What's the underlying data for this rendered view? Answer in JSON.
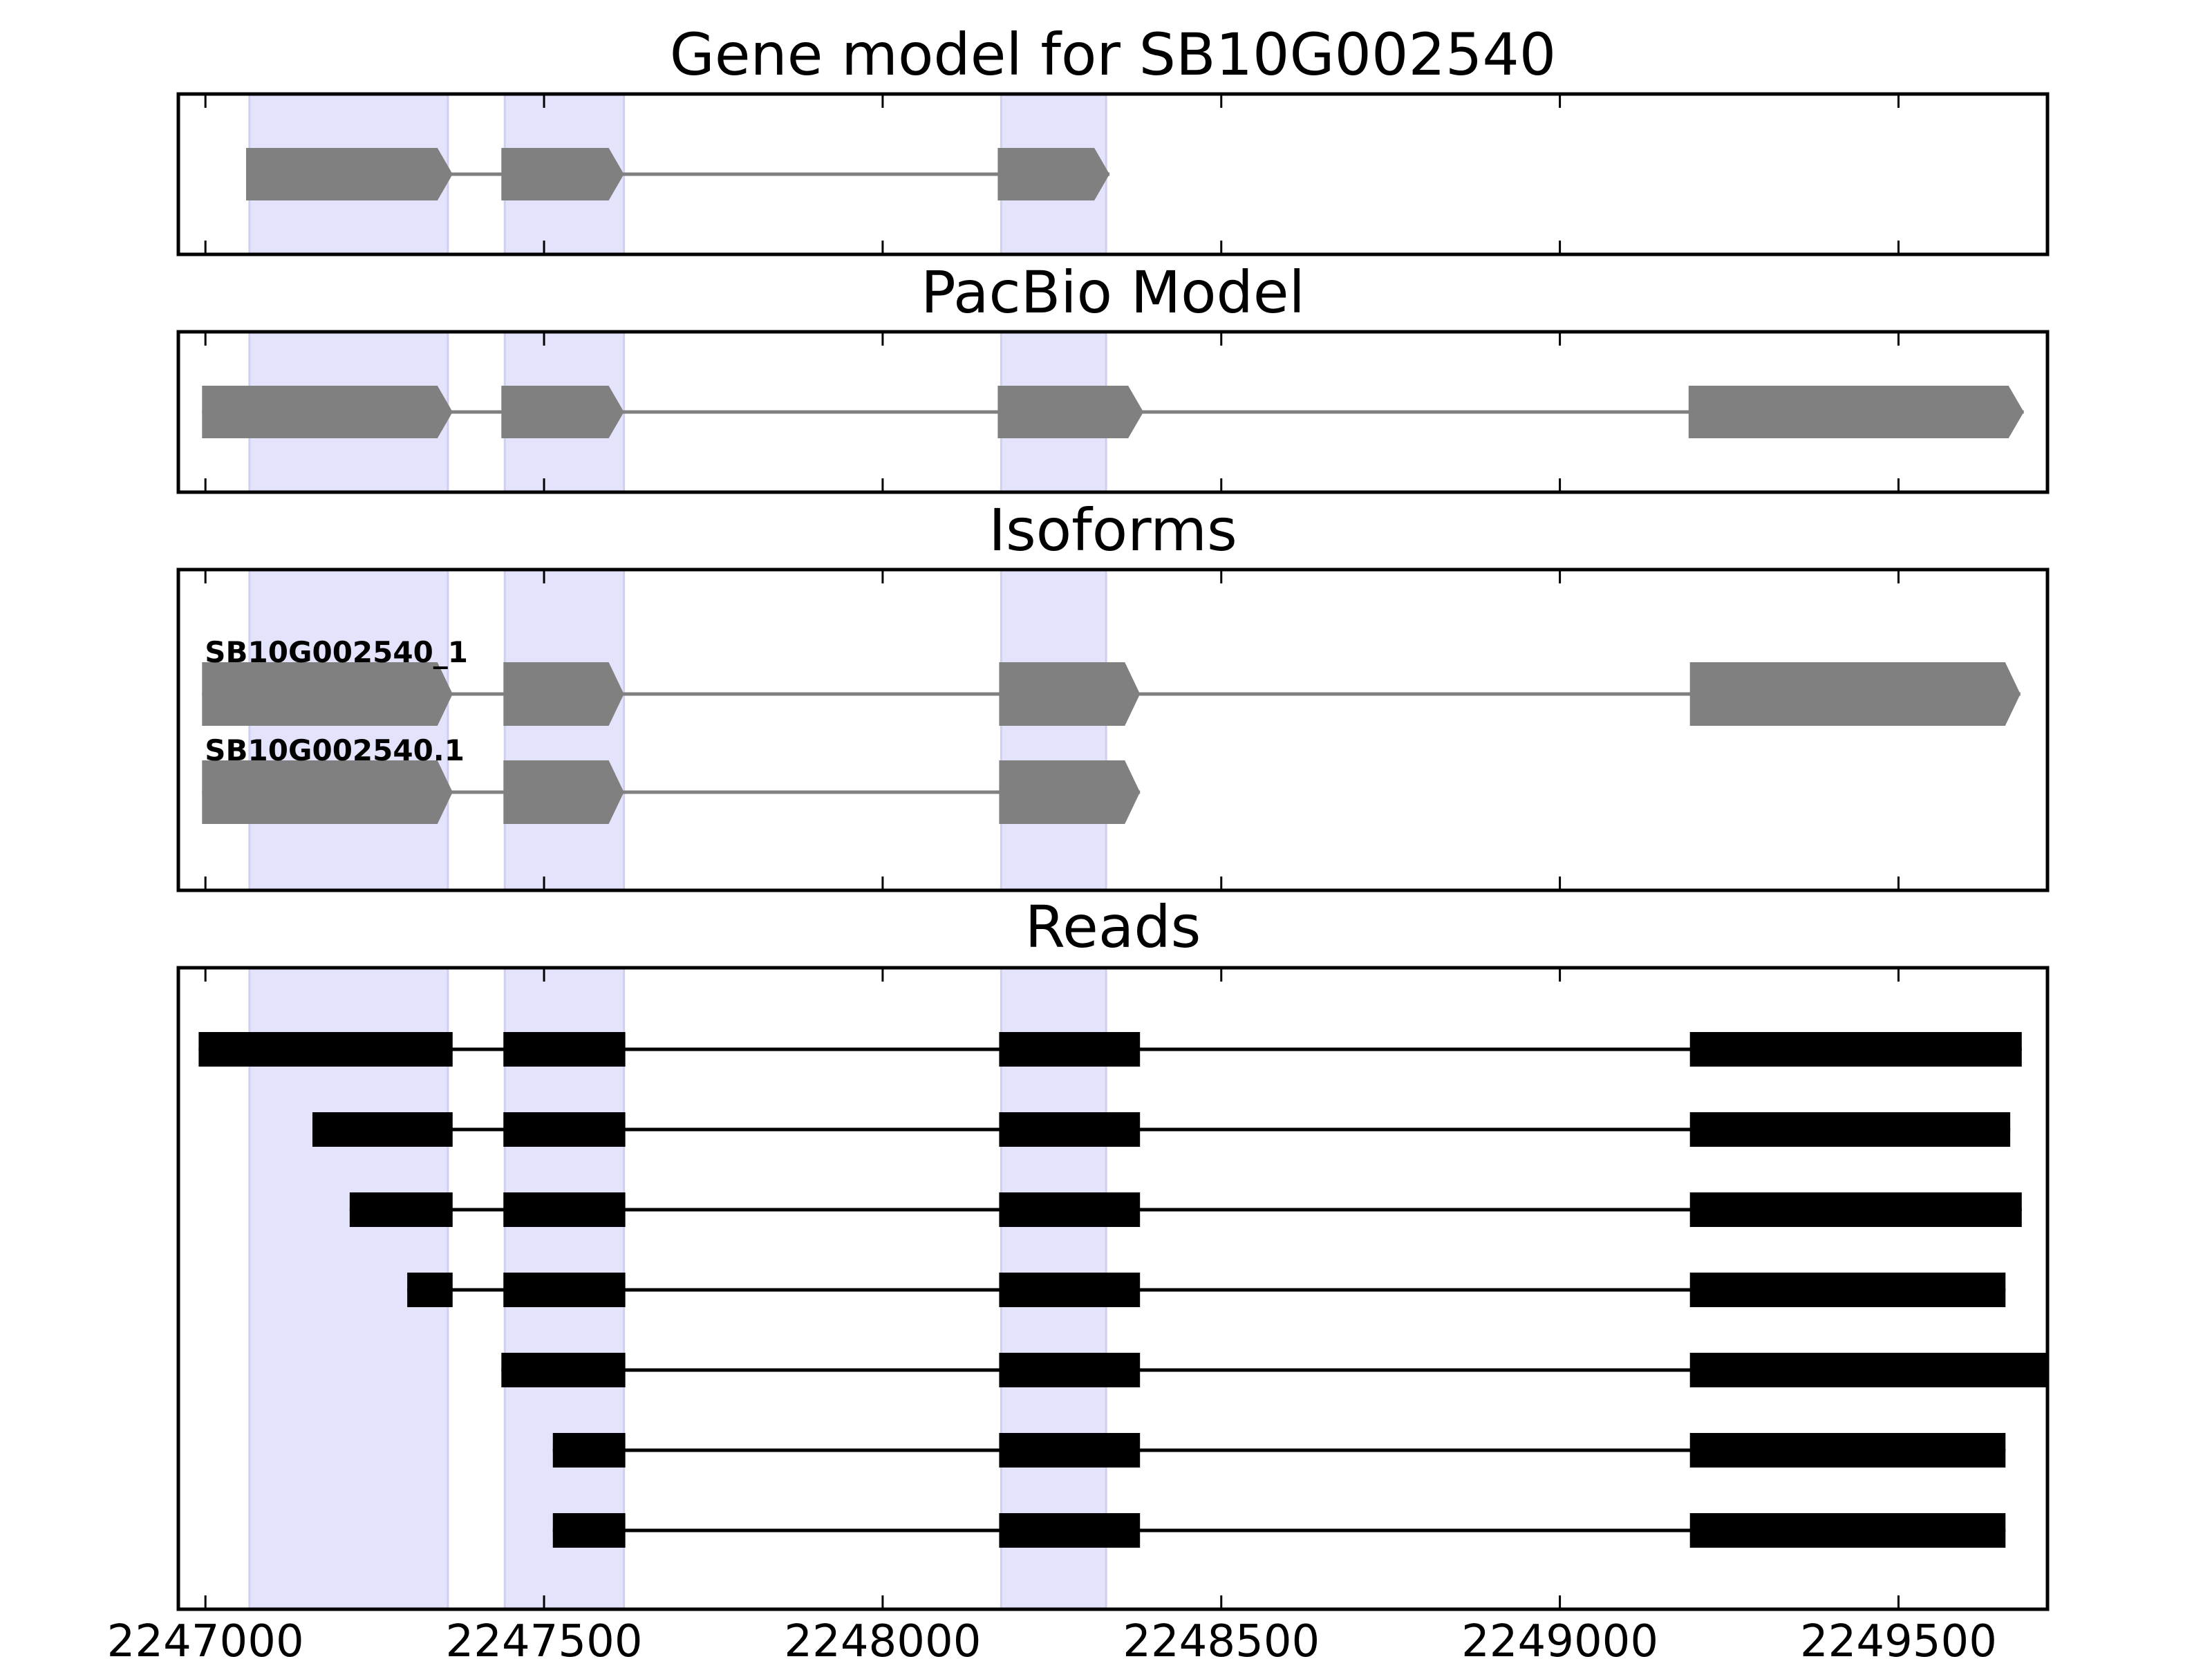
{
  "chart_data": {
    "type": "gene-track",
    "xlim": [
      2246960,
      2249720
    ],
    "xticks": [
      2247000,
      2247500,
      2248000,
      2248500,
      2249000,
      2249500
    ],
    "xtick_labels": [
      "2247000",
      "2247500",
      "2248000",
      "2248500",
      "2249000",
      "2249500"
    ],
    "highlight_color": "#e3e3fb",
    "highlight_regions": [
      [
        2247065,
        2247358
      ],
      [
        2247442,
        2247618
      ],
      [
        2248175,
        2248330
      ]
    ],
    "panels": [
      {
        "title": "Gene model for SB10G002540",
        "feature_color": "#808080",
        "tracks": [
          {
            "label": "",
            "exons": [
              [
                2247060,
                2247365
              ],
              [
                2247437,
                2247618
              ],
              [
                2248170,
                2248335
              ]
            ]
          }
        ]
      },
      {
        "title": "PacBio Model",
        "feature_color": "#808080",
        "tracks": [
          {
            "label": "",
            "exons": [
              [
                2246995,
                2247365
              ],
              [
                2247437,
                2247618
              ],
              [
                2248170,
                2248385
              ],
              [
                2249190,
                2249685
              ]
            ]
          }
        ]
      },
      {
        "title": "Isoforms",
        "feature_color": "#808080",
        "tracks": [
          {
            "label": "SB10G002540_1",
            "exons": [
              [
                2246995,
                2247365
              ],
              [
                2247440,
                2247618
              ],
              [
                2248172,
                2248380
              ],
              [
                2249192,
                2249680
              ]
            ]
          },
          {
            "label": "SB10G002540.1",
            "exons": [
              [
                2246995,
                2247365
              ],
              [
                2247440,
                2247618
              ],
              [
                2248172,
                2248380
              ]
            ]
          }
        ]
      },
      {
        "title": "Reads",
        "feature_color": "#000000",
        "tracks": [
          {
            "label": "",
            "exons": [
              [
                2246990,
                2247365
              ],
              [
                2247440,
                2247620
              ],
              [
                2248172,
                2248380
              ],
              [
                2249192,
                2249682
              ]
            ]
          },
          {
            "label": "",
            "exons": [
              [
                2247158,
                2247365
              ],
              [
                2247440,
                2247620
              ],
              [
                2248172,
                2248380
              ],
              [
                2249192,
                2249665
              ]
            ]
          },
          {
            "label": "",
            "exons": [
              [
                2247213,
                2247365
              ],
              [
                2247440,
                2247620
              ],
              [
                2248172,
                2248380
              ],
              [
                2249192,
                2249682
              ]
            ]
          },
          {
            "label": "",
            "exons": [
              [
                2247298,
                2247365
              ],
              [
                2247440,
                2247620
              ],
              [
                2248172,
                2248380
              ],
              [
                2249192,
                2249658
              ]
            ]
          },
          {
            "label": "",
            "exons": [
              [
                2247437,
                2247620
              ],
              [
                2248172,
                2248380
              ],
              [
                2249192,
                2249720
              ]
            ]
          },
          {
            "label": "",
            "exons": [
              [
                2247513,
                2247620
              ],
              [
                2248172,
                2248380
              ],
              [
                2249192,
                2249658
              ]
            ]
          },
          {
            "label": "",
            "exons": [
              [
                2247513,
                2247620
              ],
              [
                2248172,
                2248380
              ],
              [
                2249192,
                2249658
              ]
            ]
          }
        ]
      }
    ]
  }
}
